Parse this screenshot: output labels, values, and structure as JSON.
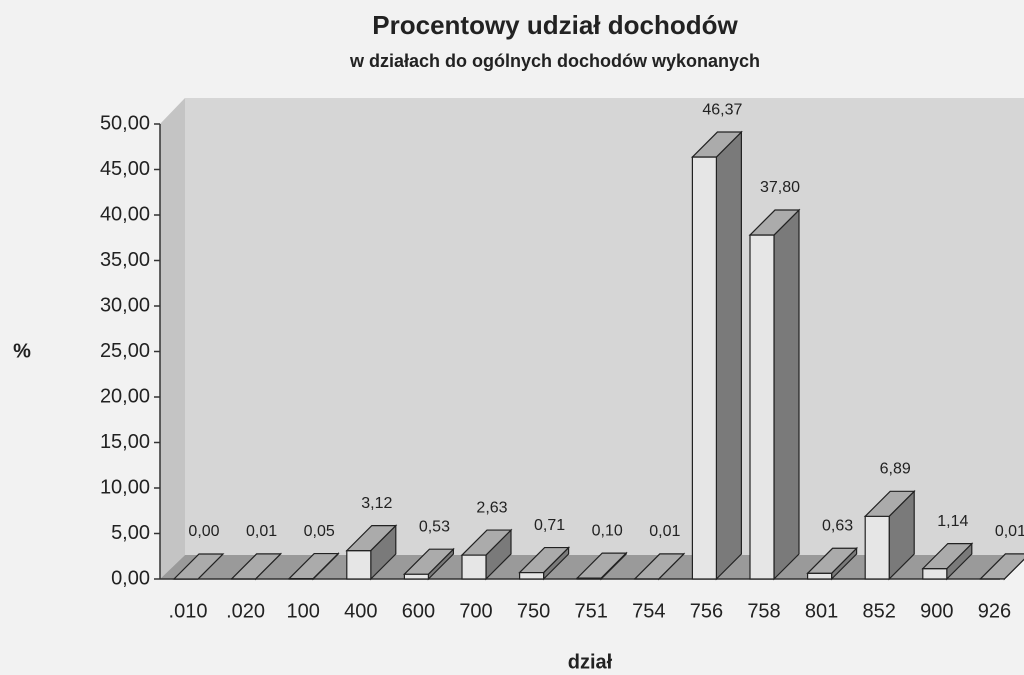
{
  "chart_data": {
    "type": "bar3d",
    "title": "Procentowy udział dochodów",
    "subtitle": "w działach do ogólnych dochodów wykonanych",
    "x_label": "dział",
    "y_label": "%",
    "categories": [
      ".010",
      ".020",
      "100",
      "400",
      "600",
      "700",
      "750",
      "751",
      "754",
      "756",
      "758",
      "801",
      "852",
      "900",
      "926"
    ],
    "values": [
      0.0,
      0.01,
      0.05,
      3.12,
      0.53,
      2.63,
      0.71,
      0.1,
      0.01,
      46.37,
      37.8,
      0.63,
      6.89,
      1.14,
      0.01
    ],
    "value_labels": [
      "0,00",
      "0,01",
      "0,05",
      "3,12",
      "0,53",
      "2,63",
      "0,71",
      "0,10",
      "0,01",
      "46,37",
      "37,80",
      "0,63",
      "6,89",
      "1,14",
      "0,01"
    ],
    "ylim": [
      0,
      50
    ],
    "yticks": [
      {
        "value": 0,
        "label": "0,00"
      },
      {
        "value": 5,
        "label": "5,00"
      },
      {
        "value": 10,
        "label": "10,00"
      },
      {
        "value": 15,
        "label": "15,00"
      },
      {
        "value": 20,
        "label": "20,00"
      },
      {
        "value": 25,
        "label": "25,00"
      },
      {
        "value": 30,
        "label": "30,00"
      },
      {
        "value": 35,
        "label": "35,00"
      },
      {
        "value": 40,
        "label": "40,00"
      },
      {
        "value": 45,
        "label": "45,00"
      },
      {
        "value": 50,
        "label": "50,00"
      }
    ],
    "color": "#e6e6e6",
    "grid": false
  }
}
